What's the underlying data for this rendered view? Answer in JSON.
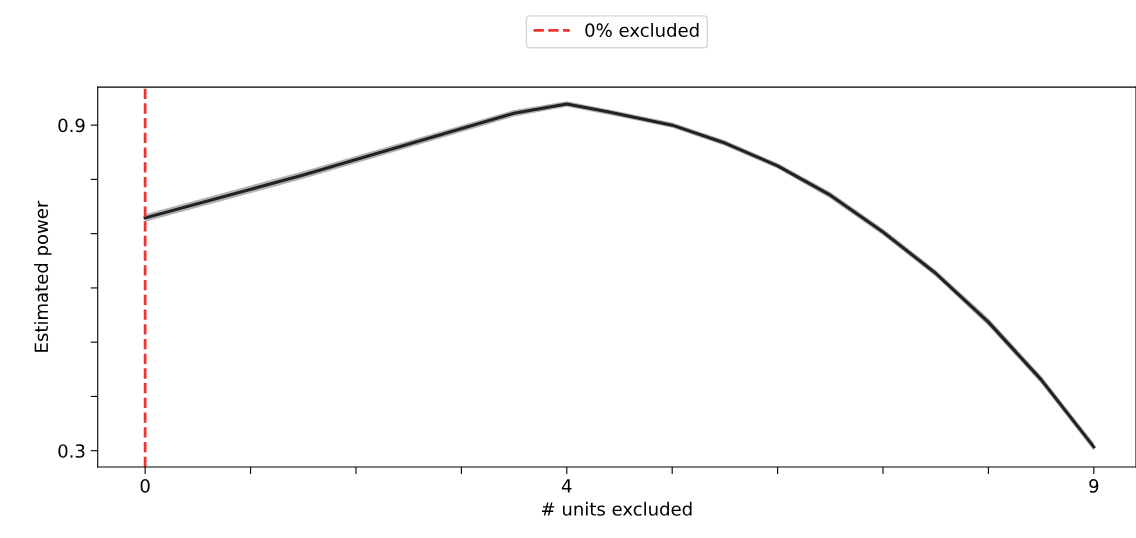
{
  "chart_data": {
    "type": "line",
    "xlabel": "# units excluded",
    "ylabel": "Estimated power",
    "series": [
      {
        "color": "#222222",
        "x": [
          0,
          1.5,
          3.5,
          4,
          4.4,
          5,
          5.5,
          6,
          6.5,
          7,
          7.5,
          8,
          8.5,
          9
        ],
        "values": [
          0.729,
          0.808,
          0.922,
          0.939,
          0.924,
          0.9,
          0.867,
          0.825,
          0.771,
          0.703,
          0.627,
          0.537,
          0.431,
          0.307
        ],
        "lower": [
          0.722,
          0.801,
          0.916,
          0.934,
          0.919,
          0.895,
          0.862,
          0.82,
          0.765,
          0.697,
          0.621,
          0.53,
          0.424,
          0.3
        ],
        "upper": [
          0.736,
          0.815,
          0.928,
          0.944,
          0.929,
          0.905,
          0.872,
          0.83,
          0.777,
          0.709,
          0.633,
          0.544,
          0.438,
          0.314
        ]
      }
    ],
    "xlim": [
      -0.45,
      9.4
    ],
    "ylim": [
      0.27,
      0.97
    ],
    "xticks": [
      0,
      {
        "value": 1,
        "label": null
      },
      {
        "value": 2,
        "label": null
      },
      {
        "value": 3,
        "label": null
      },
      4,
      {
        "value": 5,
        "label": null
      },
      {
        "value": 6,
        "label": null
      },
      {
        "value": 7,
        "label": null
      },
      {
        "value": 8,
        "label": null
      },
      9
    ],
    "yticks": [
      0.3,
      {
        "value": 0.4,
        "label": null
      },
      {
        "value": 0.5,
        "label": null
      },
      {
        "value": 0.6,
        "label": null
      },
      {
        "value": 0.7,
        "label": null
      },
      {
        "value": 0.8,
        "label": null
      },
      0.9
    ],
    "ref_lines": [
      {
        "axis": "x",
        "value": 0,
        "label": "0% excluded",
        "color": "#ee3333",
        "line_style": "dashed"
      }
    ],
    "legend": "top",
    "grid": false,
    "marker": "none",
    "line_style": "solid"
  }
}
